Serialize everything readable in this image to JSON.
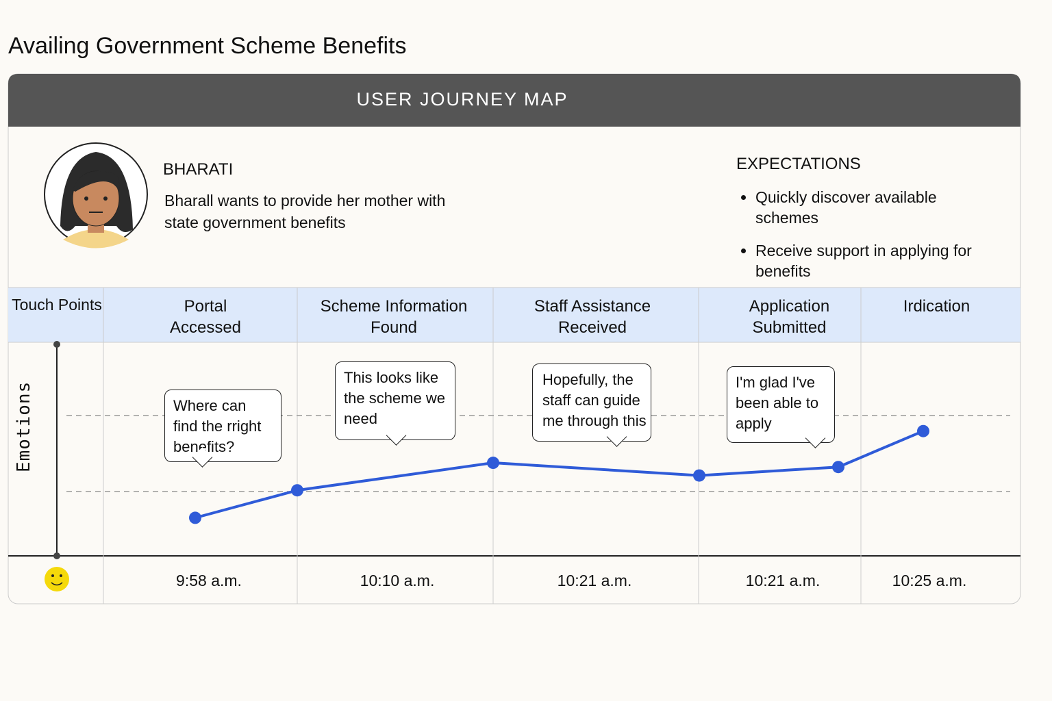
{
  "title": "Availing Government Scheme Benefits",
  "header": "USER JOURNEY MAP",
  "persona": {
    "name": "BHARATI",
    "goal": "Bharall wants to provide her mother with state government benefits"
  },
  "expectations": {
    "title": "EXPECTATIONS",
    "items": [
      "Quickly discover available schemes",
      "Receive support in applying for benefits"
    ]
  },
  "touch_points": {
    "label": "Touch Points",
    "stages": [
      "Portal Accessed",
      "Scheme Information Found",
      "Staff Assistance Received",
      "Application Submitted",
      "Irdication"
    ]
  },
  "emotions": {
    "label": "Emotions",
    "levels": [
      18,
      31,
      44,
      38,
      42,
      59
    ],
    "quotes": [
      "Where can find the rright benefits?",
      "This looks like the scheme we need",
      "Hopefully, the staff can guide me through this",
      "I'm glad I've been able to apply"
    ]
  },
  "times": [
    "9:58 a.m.",
    "10:10 a.m.",
    "10:21 a.m.",
    "10:21 a.m.",
    "10:25 a.m."
  ]
}
